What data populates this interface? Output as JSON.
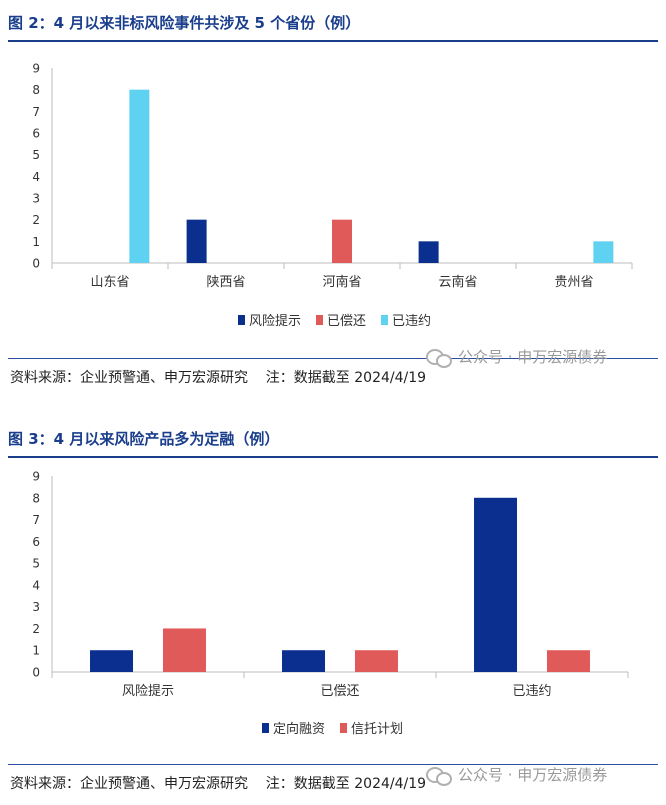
{
  "figure1": {
    "title": "图 2：4 月以来非标风险事件共涉及 5 个省份（例）",
    "source": "资料来源：企业预警通、申万宏源研究    注：数据截至 2024/4/19"
  },
  "figure2": {
    "title": "图 3：4 月以来风险产品多为定融（例）",
    "source": "资料来源：企业预警通、申万宏源研究    注：数据截至 2024/4/19"
  },
  "watermark": "公众号 · 申万宏源债券",
  "chart_data": [
    {
      "type": "bar",
      "title": "",
      "xlabel": "",
      "ylabel": "",
      "ylim": [
        0,
        9
      ],
      "yticks": [
        "0",
        "1",
        "2",
        "3",
        "4",
        "5",
        "6",
        "7",
        "8",
        "9"
      ],
      "categories": [
        "山东省",
        "陕西省",
        "河南省",
        "云南省",
        "贵州省"
      ],
      "legend_position": "bottom",
      "series": [
        {
          "name": "风险提示",
          "color": "#0b2f8f",
          "values": [
            0,
            2,
            0,
            1,
            0
          ]
        },
        {
          "name": "已偿还",
          "color": "#e15a5a",
          "values": [
            0,
            0,
            2,
            0,
            0
          ]
        },
        {
          "name": "已违约",
          "color": "#5fd2f2",
          "values": [
            8,
            0,
            0,
            0,
            1
          ]
        }
      ]
    },
    {
      "type": "bar",
      "title": "",
      "xlabel": "",
      "ylabel": "",
      "ylim": [
        0,
        9
      ],
      "yticks": [
        "0",
        "1",
        "2",
        "3",
        "4",
        "5",
        "6",
        "7",
        "8",
        "9"
      ],
      "categories": [
        "风险提示",
        "已偿还",
        "已违约"
      ],
      "legend_position": "bottom",
      "series": [
        {
          "name": "定向融资",
          "color": "#0b2f8f",
          "values": [
            1,
            1,
            8
          ]
        },
        {
          "name": "信托计划",
          "color": "#e15a5a",
          "values": [
            2,
            1,
            1
          ]
        }
      ]
    }
  ]
}
